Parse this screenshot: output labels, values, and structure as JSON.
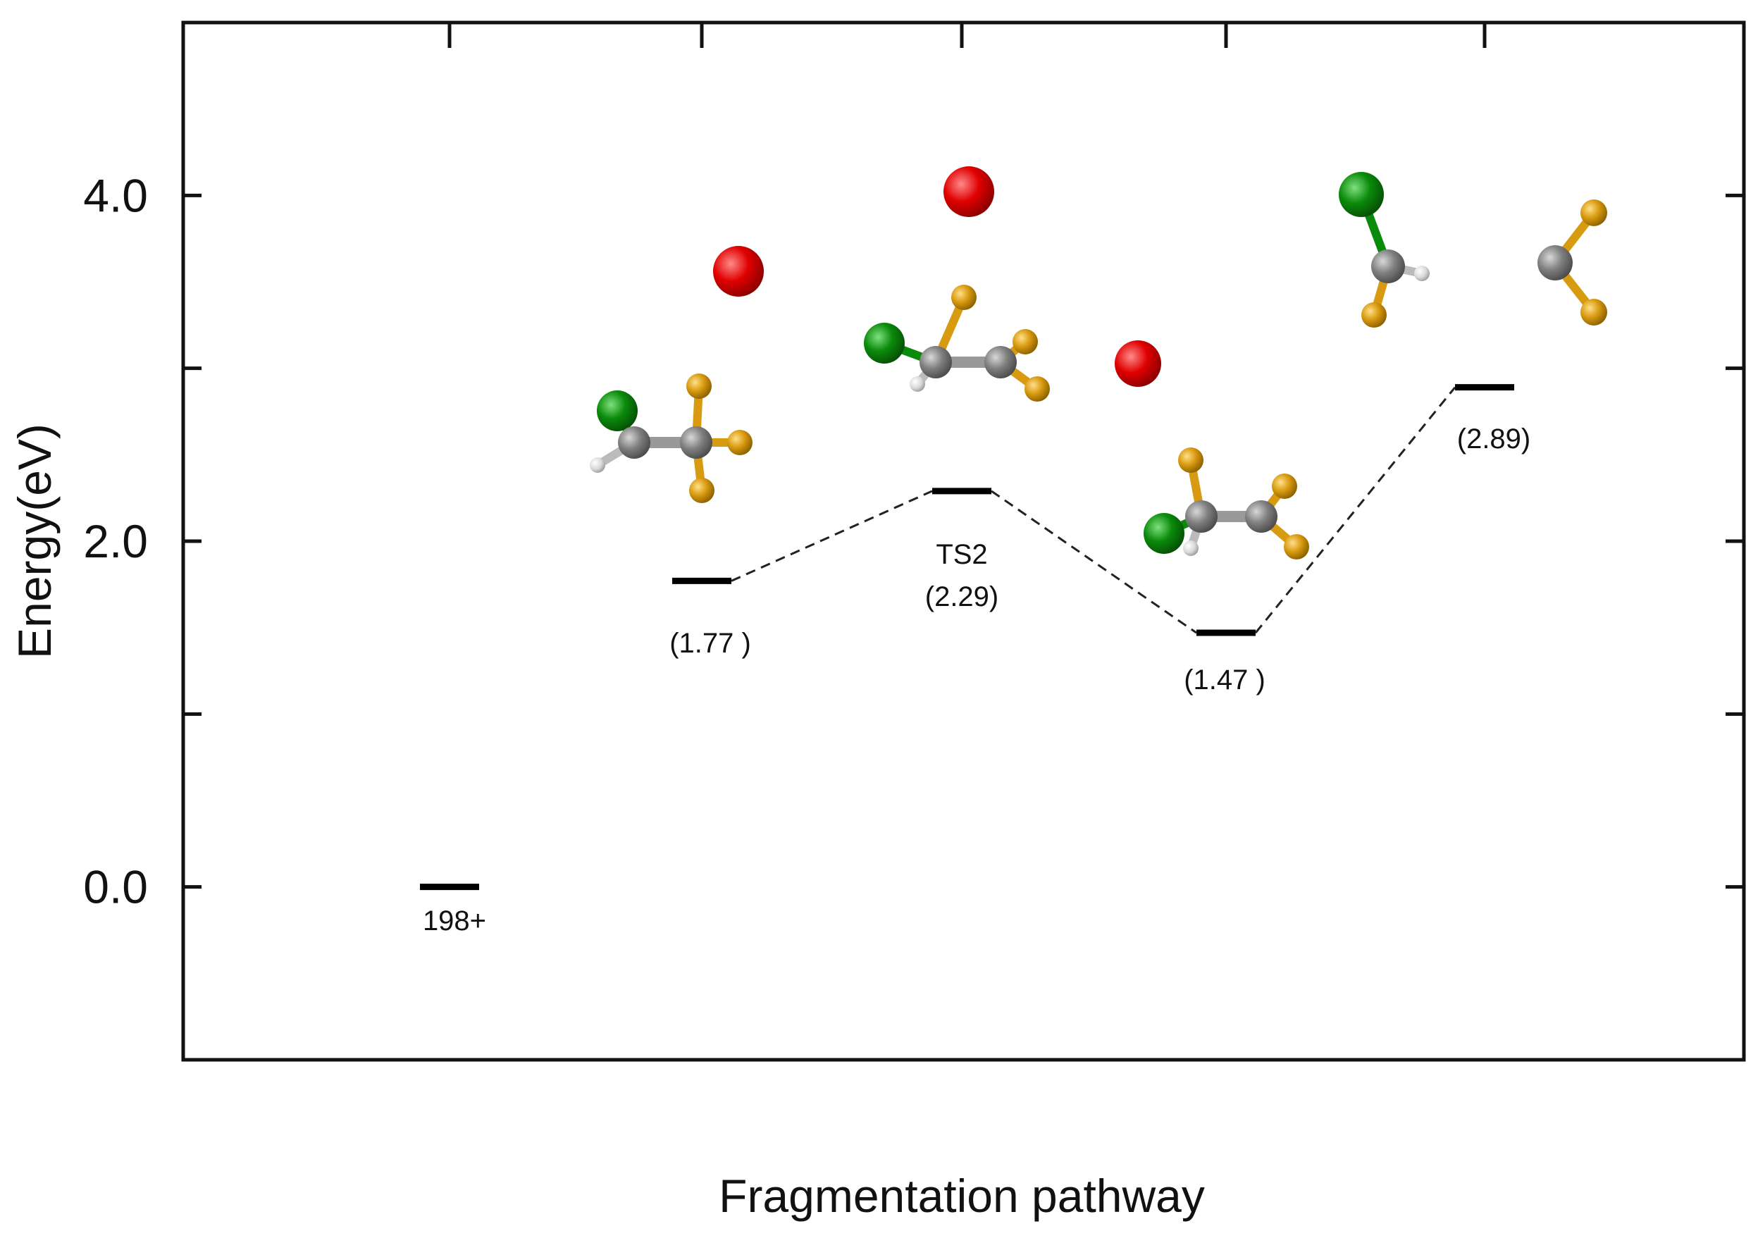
{
  "chart_data": {
    "type": "energy-level-diagram",
    "title": "",
    "xlabel": "Fragmentation pathway",
    "ylabel": "Energy(eV)",
    "ylim": [
      -1.0,
      5.0
    ],
    "y_ticks": [
      {
        "value": 0,
        "label": "0.0"
      },
      {
        "value": 1,
        "label": ""
      },
      {
        "value": 2,
        "label": "2.0"
      },
      {
        "value": 3,
        "label": ""
      },
      {
        "value": 4,
        "label": "4.0"
      }
    ],
    "x_ticks": [
      1,
      2,
      3,
      4,
      5
    ],
    "levels": [
      {
        "x": 1,
        "energy": 0.0,
        "name": "198+",
        "label": ""
      },
      {
        "x": 2,
        "energy": 1.77,
        "name": "",
        "label": "(1.77 )"
      },
      {
        "x": 3,
        "energy": 2.29,
        "name": "TS2",
        "label": "(2.29)"
      },
      {
        "x": 4,
        "energy": 1.47,
        "name": "",
        "label": "(1.47 )"
      },
      {
        "x": 5,
        "energy": 2.89,
        "name": "",
        "label": "(2.89)"
      }
    ],
    "connections": [
      [
        1,
        2
      ],
      [
        2,
        3
      ],
      [
        3,
        4
      ]
    ],
    "grid": false,
    "legend": "none",
    "colors": {
      "axis": "#111111",
      "level": "#000000",
      "dashed_line": "#222222",
      "oxygen_atom": "#e00000",
      "chlorine_atom": "#0a8a0a",
      "carbon_atom": "#808080",
      "fluorine_atom": "#d89a10",
      "hydrogen_atom": "#d8d8d8"
    }
  }
}
